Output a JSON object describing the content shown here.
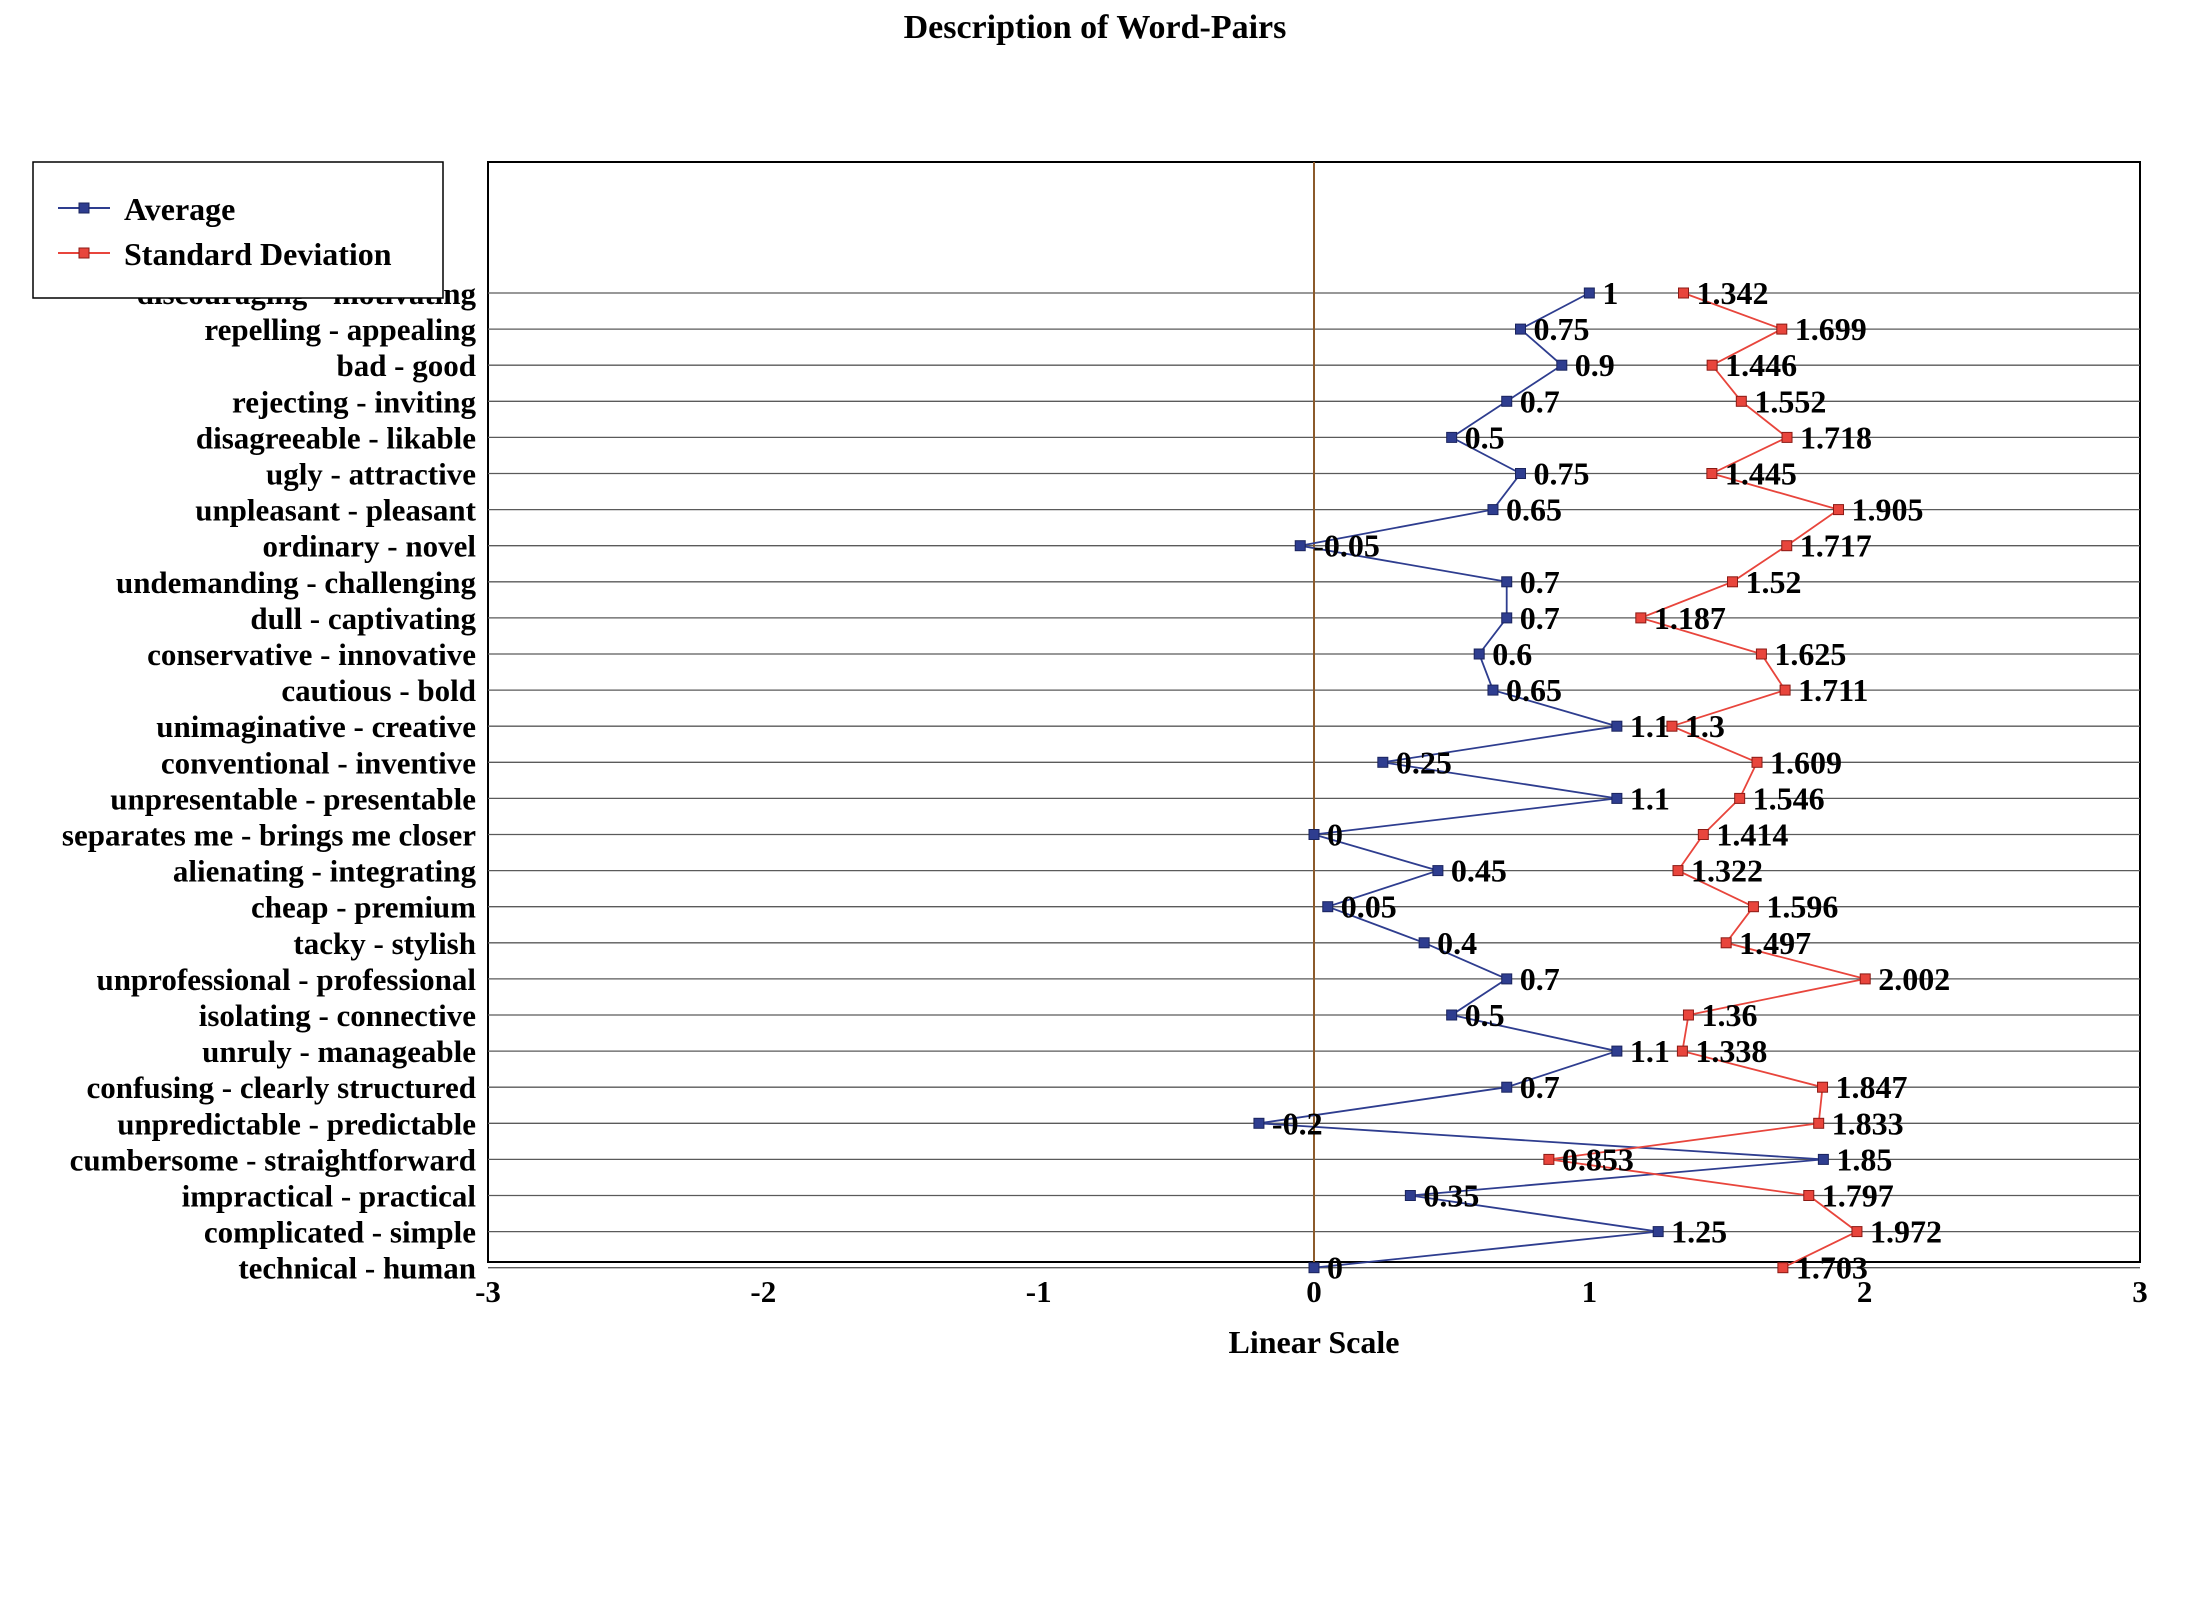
{
  "chart_data": {
    "type": "line",
    "title": "Description of Word-Pairs",
    "xlabel": "Linear Scale",
    "ylabel": "",
    "xlim": [
      -3,
      3
    ],
    "x_ticks": [
      "-3",
      "-2",
      "-1",
      "0",
      "1",
      "2",
      "3"
    ],
    "grid": true,
    "legend_position": "top-left",
    "categories": [
      "discouraging - motivating",
      "repelling - appealing",
      "bad -  good",
      "rejecting - inviting",
      "disagreeable - likable",
      "ugly - attractive",
      "unpleasant - pleasant",
      "ordinary - novel",
      "undemanding - challenging",
      "dull - captivating",
      "conservative - innovative",
      "cautious - bold",
      "unimaginative - creative",
      "conventional - inventive",
      "unpresentable - presentable",
      "separates me - brings me closer",
      "alienating - integrating",
      "cheap - premium",
      "tacky - stylish",
      "unprofessional - professional",
      "isolating - connective",
      "unruly - manageable",
      "confusing - clearly structured",
      "unpredictable -  predictable",
      "cumbersome - straightforward",
      "impractical - practical",
      "complicated - simple",
      "technical - human"
    ],
    "series": [
      {
        "name": "Average",
        "color": "#2E3D8F",
        "values": [
          1,
          0.75,
          0.9,
          0.7,
          0.5,
          0.75,
          0.65,
          -0.05,
          0.7,
          0.7,
          0.6,
          0.65,
          1.1,
          0.25,
          1.1,
          0,
          0.45,
          0.05,
          0.4,
          0.7,
          0.5,
          1.1,
          0.7,
          -0.2,
          1.85,
          0.35,
          1.25,
          0
        ],
        "labels": [
          "1",
          "0.75",
          "0.9",
          "0.7",
          "0.5",
          "0.75",
          "0.65",
          "-0.05",
          "0.7",
          "0.7",
          "0.6",
          "0.65",
          "1.1",
          "0.25",
          "1.1",
          "0",
          "0.45",
          "0.05",
          "0.4",
          "0.7",
          "0.5",
          "1.1",
          "0.7",
          "-0.2",
          "1.85",
          "0.35",
          "1.25",
          "0"
        ]
      },
      {
        "name": "Standard Deviation",
        "color": "#E8453C",
        "values": [
          1.342,
          1.699,
          1.446,
          1.552,
          1.718,
          1.445,
          1.905,
          1.717,
          1.52,
          1.187,
          1.625,
          1.711,
          1.3,
          1.609,
          1.546,
          1.414,
          1.322,
          1.596,
          1.497,
          2.002,
          1.36,
          1.338,
          1.847,
          1.833,
          0.853,
          1.797,
          1.972,
          1.703
        ],
        "labels": [
          "1.342",
          "1.699",
          "1.446",
          "1.552",
          "1.718",
          "1.445",
          "1.905",
          "1.717",
          "1.52",
          "1.187",
          "1.625",
          "1.711",
          "1.3",
          "1.609",
          "1.546",
          "1.414",
          "1.322",
          "1.596",
          "1.497",
          "2.002",
          "1.36",
          "1.338",
          "1.847",
          "1.833",
          "0.853",
          "1.797",
          "1.972",
          "1.703"
        ]
      }
    ],
    "zero_line_color": "#8B5A2B"
  }
}
